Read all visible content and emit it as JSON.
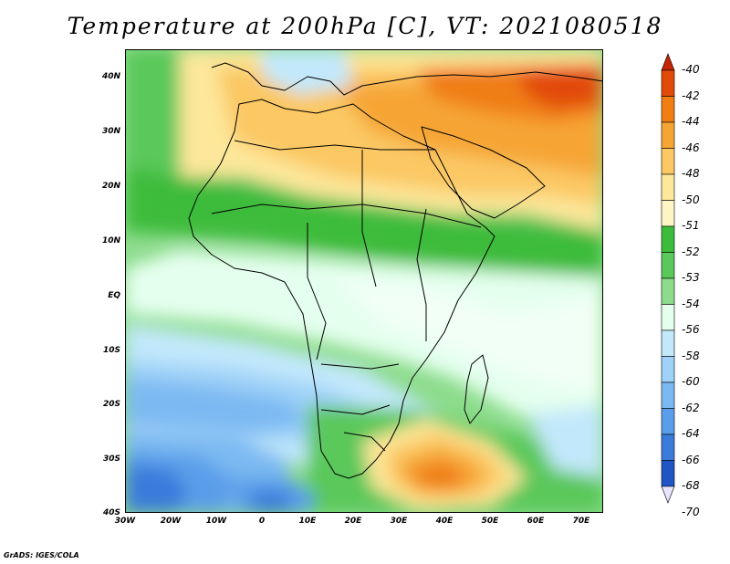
{
  "title": "Temperature at 200hPa [C], VT: 2021080518",
  "credit": "GrADS: IGES/COLA",
  "map": {
    "field": "Temperature at 200hPa",
    "units": "C",
    "valid_time": "2021080518",
    "lon_range": [
      -30,
      75
    ],
    "lat_range": [
      -40,
      45
    ]
  },
  "axes": {
    "lat_labels": [
      "40N",
      "30N",
      "20N",
      "10N",
      "EQ",
      "10S",
      "20S",
      "30S",
      "40S"
    ],
    "lon_labels": [
      "30W",
      "20W",
      "10W",
      "0",
      "10E",
      "20E",
      "30E",
      "40E",
      "50E",
      "60E",
      "70E"
    ]
  },
  "colorbar": {
    "levels": [
      "-40",
      "-42",
      "-44",
      "-46",
      "-48",
      "-50",
      "-51",
      "-52",
      "-53",
      "-54",
      "-56",
      "-58",
      "-60",
      "-62",
      "-64",
      "-66",
      "-68",
      "-70"
    ],
    "colors": [
      "#c52500",
      "#e24a08",
      "#f07e12",
      "#f6a534",
      "#fbc864",
      "#fde79a",
      "#fdf5c3",
      "#3dbb3a",
      "#5ac85a",
      "#8cdc8c",
      "#e4ffee",
      "#c2e8fb",
      "#9fd2f8",
      "#7bb9f2",
      "#5a9ee9",
      "#3a7bdb",
      "#1f55c4",
      "#0c1d87"
    ]
  },
  "colors": {
    "background": "#ffffff",
    "boundary": "#000000"
  }
}
